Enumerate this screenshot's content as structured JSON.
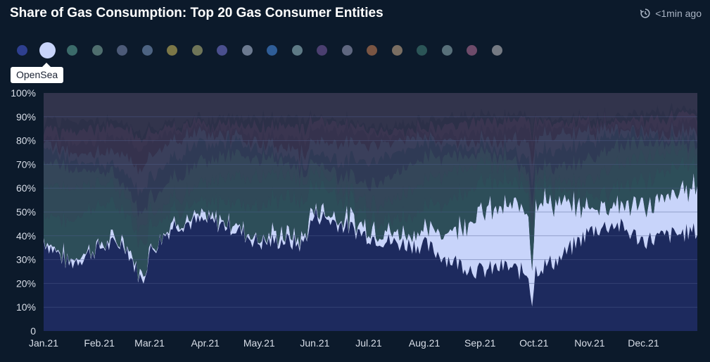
{
  "header": {
    "title": "Share of Gas Consumption: Top 20 Gas Consumer Entities",
    "updated": "<1min ago"
  },
  "legend": {
    "active_index": 1,
    "tooltip": "OpenSea",
    "dot_colors": [
      "#2e3f8f",
      "#c8d4fa",
      "#3b6b6a",
      "#4f6e6e",
      "#4c5a78",
      "#4d6382",
      "#7c7747",
      "#6f7558",
      "#4a4f8e",
      "#6c7a90",
      "#2f5d97",
      "#5e7a86",
      "#4b3f70",
      "#5f6780",
      "#7a5543",
      "#7a6e62",
      "#2b5557",
      "#58707a",
      "#6e4b6a",
      "#757a83"
    ]
  },
  "chart_data": {
    "type": "area",
    "stacked_percent": true,
    "x_ticks": [
      "Jan.21",
      "Feb.21",
      "Mar.21",
      "Apr.21",
      "May.21",
      "Jun.21",
      "Jul.21",
      "Aug.21",
      "Sep.21",
      "Oct.21",
      "Nov.21",
      "Dec.21"
    ],
    "y_ticks": [
      "100%",
      "90%",
      "80%",
      "70%",
      "60%",
      "50%",
      "40%",
      "30%",
      "20%",
      "10%",
      "0"
    ],
    "ylim": [
      0,
      100
    ],
    "grid": true,
    "colors": {
      "background": "#0c1a2b",
      "base": "#1d2a5e",
      "opensea": "#c8d4fa",
      "mid": "#2c4f5a",
      "upper": "#2e3a55",
      "top": "#35324d"
    },
    "series": [
      {
        "name": "",
        "x": [
          "2021-01-01",
          "2021-01-15",
          "2021-02-01",
          "2021-02-15",
          "2021-02-25",
          "2021-03-01",
          "2021-03-15",
          "2021-04-01",
          "2021-04-15",
          "2021-05-01",
          "2021-05-15",
          "2021-05-25",
          "2021-06-01",
          "2021-06-15",
          "2021-07-01",
          "2021-07-15",
          "2021-08-01",
          "2021-08-15",
          "2021-09-01",
          "2021-09-15",
          "2021-09-28",
          "2021-09-30",
          "2021-10-02",
          "2021-10-15",
          "2021-11-01",
          "2021-11-15",
          "2021-12-01",
          "2021-12-15",
          "2021-12-31"
        ],
        "values": [
          38,
          28,
          35,
          37,
          20,
          33,
          45,
          46,
          44,
          37,
          38,
          36,
          49,
          45,
          40,
          37,
          36,
          30,
          25,
          27,
          24,
          12,
          26,
          30,
          42,
          45,
          38,
          40,
          42
        ]
      },
      {
        "name": "OpenSea",
        "x": [
          "2021-01-01",
          "2021-01-15",
          "2021-02-01",
          "2021-02-15",
          "2021-02-25",
          "2021-03-01",
          "2021-03-15",
          "2021-04-01",
          "2021-04-15",
          "2021-05-01",
          "2021-05-15",
          "2021-05-25",
          "2021-06-01",
          "2021-06-15",
          "2021-07-01",
          "2021-07-15",
          "2021-08-01",
          "2021-08-15",
          "2021-09-01",
          "2021-09-15",
          "2021-09-28",
          "2021-09-30",
          "2021-10-02",
          "2021-10-15",
          "2021-11-01",
          "2021-11-15",
          "2021-12-01",
          "2021-12-15",
          "2021-12-31"
        ],
        "values": [
          1,
          1,
          1,
          1,
          1,
          1,
          1,
          1,
          2,
          2,
          3,
          2,
          3,
          3,
          4,
          4,
          6,
          12,
          25,
          25,
          28,
          15,
          30,
          23,
          10,
          9,
          14,
          16,
          20
        ]
      }
    ]
  }
}
